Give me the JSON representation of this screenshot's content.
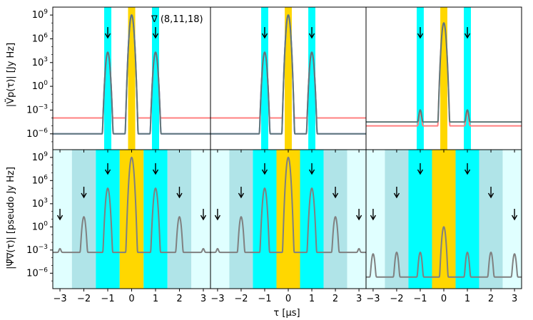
{
  "chart_data": {
    "type": "line",
    "layout": "2x3 grid of log-scale delay spectra",
    "xlabel": "τ [μs]",
    "xlim": [
      -3.3,
      3.3
    ],
    "x_ticks": [
      -3,
      -2,
      -1,
      0,
      1,
      2,
      3
    ],
    "x_tick_labels": [
      "−3",
      "−2",
      "−1",
      "0",
      "1",
      "2",
      "3"
    ],
    "y_log10_range": [
      -8,
      10
    ],
    "y_ticks_exp": [
      9,
      6,
      3,
      0,
      -3,
      -6
    ],
    "y_tick_base": "10",
    "rows": [
      {
        "ylabel": "|Ṽp(τ)| [Jy Hz]",
        "annotation": "∇ (8,11,18)",
        "arrow_positions": [
          -1,
          1
        ],
        "bands": [
          {
            "from": -1.15,
            "to": -0.85,
            "color": "#00ffff"
          },
          {
            "from": -0.15,
            "to": 0.15,
            "color": "#ffd700"
          },
          {
            "from": 0.85,
            "to": 1.15,
            "color": "#00ffff"
          }
        ],
        "panels": [
          {
            "series": [
              {
                "name": "red",
                "color": "#ff8080",
                "floor_exp": -4,
                "peaks": [
                  [
                    0,
                    9
                  ],
                  [
                    -1,
                    4.3
                  ],
                  [
                    1,
                    4.3
                  ]
                ]
              },
              {
                "name": "blue",
                "color": "#7a7aff",
                "floor_exp": -6,
                "peaks": [
                  [
                    0,
                    9
                  ],
                  [
                    -1,
                    4.3
                  ],
                  [
                    1,
                    4.3
                  ]
                ]
              },
              {
                "name": "grey",
                "color": "#607878",
                "floor_exp": -6,
                "peaks": [
                  [
                    0,
                    9
                  ],
                  [
                    -1,
                    4.3
                  ],
                  [
                    1,
                    4.3
                  ]
                ]
              }
            ]
          },
          {
            "series": [
              {
                "name": "red",
                "color": "#ff8080",
                "floor_exp": -4,
                "peaks": [
                  [
                    0,
                    9
                  ],
                  [
                    -1,
                    4.3
                  ],
                  [
                    1,
                    4.3
                  ]
                ]
              },
              {
                "name": "blue",
                "color": "#7a7aff",
                "floor_exp": -6,
                "peaks": [
                  [
                    0,
                    9
                  ],
                  [
                    -1,
                    4.3
                  ],
                  [
                    1,
                    4.3
                  ]
                ]
              },
              {
                "name": "grey",
                "color": "#607878",
                "floor_exp": -6,
                "peaks": [
                  [
                    0,
                    9
                  ],
                  [
                    -1,
                    4.3
                  ],
                  [
                    1,
                    4.3
                  ]
                ]
              }
            ]
          },
          {
            "series": [
              {
                "name": "red",
                "color": "#ff8080",
                "floor_exp": -5,
                "peaks": [
                  [
                    0,
                    8
                  ],
                  [
                    -1,
                    -3.3
                  ],
                  [
                    1,
                    -3.3
                  ]
                ]
              },
              {
                "name": "grey",
                "color": "#607878",
                "floor_exp": -4.5,
                "peaks": [
                  [
                    0,
                    8
                  ],
                  [
                    -1,
                    -3
                  ],
                  [
                    1,
                    -3
                  ]
                ]
              }
            ]
          }
        ]
      },
      {
        "ylabel": "|Ψ̃∇(τ)| [pseudo Jy Hz]",
        "arrow_positions": [
          -3,
          -2,
          -1,
          1,
          2,
          3
        ],
        "bands": [
          {
            "from": -3.5,
            "to": -2.5,
            "color": "#e0ffff"
          },
          {
            "from": -2.5,
            "to": -1.5,
            "color": "#b0e4e8"
          },
          {
            "from": -1.5,
            "to": -0.5,
            "color": "#00ffff"
          },
          {
            "from": -0.5,
            "to": 0.5,
            "color": "#ffd700"
          },
          {
            "from": 0.5,
            "to": 1.5,
            "color": "#00ffff"
          },
          {
            "from": 1.5,
            "to": 2.5,
            "color": "#b0e4e8"
          },
          {
            "from": 2.5,
            "to": 3.5,
            "color": "#e0ffff"
          }
        ],
        "panels": [
          {
            "series": [
              {
                "name": "grey",
                "color": "#808080",
                "floor_exp": -3.3,
                "peaks": [
                  [
                    0,
                    9
                  ],
                  [
                    -1,
                    5
                  ],
                  [
                    1,
                    5
                  ],
                  [
                    -2,
                    1.3
                  ],
                  [
                    2,
                    1.3
                  ],
                  [
                    -3,
                    -3
                  ],
                  [
                    3,
                    -3
                  ]
                ]
              }
            ]
          },
          {
            "series": [
              {
                "name": "grey",
                "color": "#808080",
                "floor_exp": -3.3,
                "peaks": [
                  [
                    0,
                    9
                  ],
                  [
                    -1,
                    5
                  ],
                  [
                    1,
                    5
                  ],
                  [
                    -2,
                    1.3
                  ],
                  [
                    2,
                    1.3
                  ],
                  [
                    -3,
                    -3
                  ],
                  [
                    3,
                    -3
                  ]
                ]
              }
            ]
          },
          {
            "series": [
              {
                "name": "grey",
                "color": "#808080",
                "floor_exp": -6.5,
                "peaks": [
                  [
                    0,
                    0
                  ],
                  [
                    -1,
                    -3.3
                  ],
                  [
                    1,
                    -3.3
                  ],
                  [
                    -2,
                    -3.3
                  ],
                  [
                    2,
                    -3.3
                  ],
                  [
                    -3,
                    -3.5
                  ],
                  [
                    3,
                    -3.5
                  ]
                ]
              }
            ]
          }
        ]
      }
    ]
  }
}
